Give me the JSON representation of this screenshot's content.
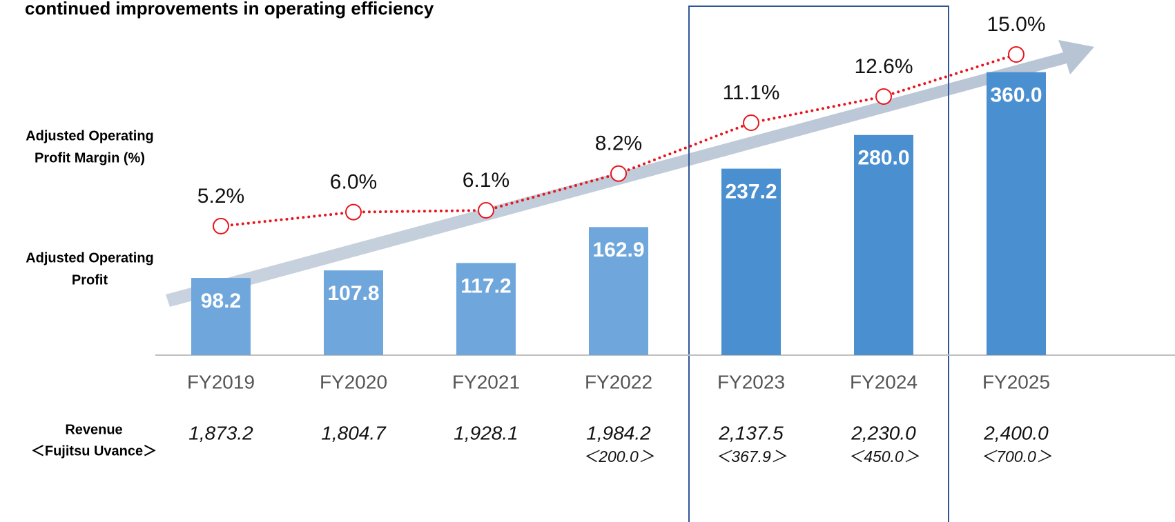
{
  "chart_data": {
    "type": "bar_line",
    "title": "continued improvements in operating efficiency",
    "categories": [
      "FY2019",
      "FY2020",
      "FY2021",
      "FY2022",
      "FY2023",
      "FY2024",
      "FY2025"
    ],
    "row_labels": {
      "margin": [
        "Adjusted Operating",
        "Profit Margin (%)"
      ],
      "profit": [
        "Adjusted Operating",
        "Profit"
      ],
      "revenue": [
        "Revenue",
        "＜Fujitsu Uvance＞"
      ]
    },
    "series": [
      {
        "name": "Adjusted Operating Profit",
        "type": "bar",
        "colors": [
          "#6fa7dc",
          "#6fa7dc",
          "#6fa7dc",
          "#6fa7dc",
          "#4a8fd0",
          "#4a8fd0",
          "#4a8fd0"
        ],
        "values": [
          98.2,
          107.8,
          117.2,
          162.9,
          237.2,
          280.0,
          360.0
        ],
        "value_labels": [
          "98.2",
          "107.8",
          "117.2",
          "162.9",
          "237.2",
          "280.0",
          "360.0"
        ]
      },
      {
        "name": "Adjusted Operating Profit Margin (%)",
        "type": "line",
        "color": "#e8141c",
        "values": [
          5.2,
          6.0,
          6.1,
          8.2,
          11.1,
          12.6,
          15.0
        ],
        "value_labels": [
          "5.2%",
          "6.0%",
          "6.1%",
          "8.2%",
          "11.1%",
          "12.6%",
          "15.0%"
        ]
      }
    ],
    "revenue": {
      "values": [
        1873.2,
        1804.7,
        1928.1,
        1984.2,
        2137.5,
        2230.0,
        2400.0
      ],
      "value_labels": [
        "1,873.2",
        "1,804.7",
        "1,928.1",
        "1,984.2",
        "2,137.5",
        "2,230.0",
        "2,400.0"
      ]
    },
    "uvance": {
      "values": [
        null,
        null,
        null,
        200.0,
        367.9,
        450.0,
        700.0
      ],
      "value_labels": [
        null,
        null,
        null,
        "＜200.0＞",
        "＜367.9＞",
        "＜450.0＞",
        "＜700.0＞"
      ]
    }
  }
}
